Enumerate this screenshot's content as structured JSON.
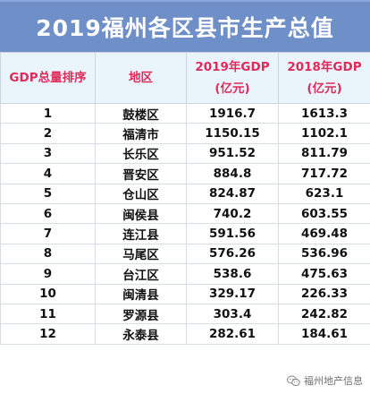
{
  "title": "2019福州各区县市生产总值",
  "colors": {
    "title_bg": "#6f8fc9",
    "header_text": "#e02a5a",
    "header_bg": "#eaf4fb"
  },
  "table": {
    "headers": {
      "rank": "GDP总量排序",
      "region": "地区",
      "gdp2019_line1": "2019年GDP",
      "gdp2019_line2": "(亿元)",
      "gdp2018_line1": "2018年GDP",
      "gdp2018_line2": "(亿元)"
    },
    "rows": [
      {
        "rank": "1",
        "region": "鼓楼区",
        "gdp2019": "1916.7",
        "gdp2018": "1613.3"
      },
      {
        "rank": "2",
        "region": "福清市",
        "gdp2019": "1150.15",
        "gdp2018": "1102.1"
      },
      {
        "rank": "3",
        "region": "长乐区",
        "gdp2019": "951.52",
        "gdp2018": "811.79"
      },
      {
        "rank": "4",
        "region": "晋安区",
        "gdp2019": "884.8",
        "gdp2018": "717.72"
      },
      {
        "rank": "5",
        "region": "仓山区",
        "gdp2019": "824.87",
        "gdp2018": "623.1"
      },
      {
        "rank": "6",
        "region": "闽侯县",
        "gdp2019": "740.2",
        "gdp2018": "603.55"
      },
      {
        "rank": "7",
        "region": "连江县",
        "gdp2019": "591.56",
        "gdp2018": "469.48"
      },
      {
        "rank": "8",
        "region": "马尾区",
        "gdp2019": "576.26",
        "gdp2018": "536.96"
      },
      {
        "rank": "9",
        "region": "台江区",
        "gdp2019": "538.6",
        "gdp2018": "475.63"
      },
      {
        "rank": "10",
        "region": "闽清县",
        "gdp2019": "329.17",
        "gdp2018": "226.33"
      },
      {
        "rank": "11",
        "region": "罗源县",
        "gdp2019": "303.4",
        "gdp2018": "242.82"
      },
      {
        "rank": "12",
        "region": "永泰县",
        "gdp2019": "282.61",
        "gdp2018": "184.61"
      }
    ]
  },
  "watermark": {
    "text": "福州地产信息",
    "icon": "wechat-icon"
  }
}
